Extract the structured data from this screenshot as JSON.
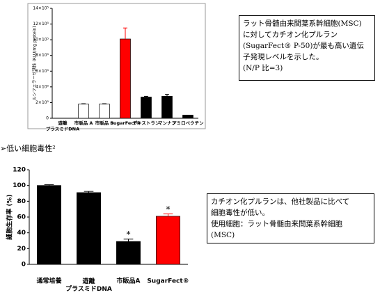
{
  "charts": [
    {
      "chart_data": {
        "type": "bar",
        "ylabel": "ルシフェラーゼ活性 (RLU/mg protein)",
        "categories": [
          "遊離\nプラスミドDNA",
          "市販品 A",
          "市販品 B",
          "SugarFect®",
          "デキストラン",
          "マンナン",
          "アミロペクチン"
        ],
        "values": [
          0,
          180000,
          180000,
          1010000,
          270000,
          280000,
          40000
        ],
        "errors": [
          0,
          5000,
          5000,
          140000,
          10000,
          25000,
          0
        ],
        "colors": [
          "#ffffff",
          "#ffffff",
          "#ffffff",
          "#ff0000",
          "#000000",
          "#000000",
          "#000000"
        ],
        "label_colors": [
          "#000000",
          "#000000",
          "#000000",
          "#ff0000",
          "#000000",
          "#000000",
          "#000000"
        ],
        "ylim": [
          0,
          1400000
        ],
        "yticks": [
          0,
          {
            "value": 200000,
            "label": "2×10⁵"
          },
          {
            "value": 400000,
            "label": "4×10⁵"
          },
          {
            "value": 600000,
            "label": "6×10⁵"
          },
          {
            "value": 800000,
            "label": "8×10⁵"
          },
          {
            "value": 1000000,
            "label": "10×10⁵"
          },
          {
            "value": 1200000,
            "label": "12×10⁵"
          },
          {
            "value": 1400000,
            "label": "14×10⁵"
          }
        ]
      }
    },
    {
      "chart_data": {
        "type": "bar",
        "ylabel": "細胞生存率 (%)",
        "categories": [
          "通常培養",
          "遊離\nプラスミドDNA",
          "市販品A",
          "SugarFect®"
        ],
        "values": [
          100,
          91,
          29,
          61
        ],
        "errors": [
          1,
          1.5,
          3,
          3
        ],
        "markers": [
          null,
          null,
          "*",
          "*"
        ],
        "colors": [
          "#000000",
          "#000000",
          "#000000",
          "#ff0000"
        ],
        "label_colors": [
          "#000000",
          "#000000",
          "#000000",
          "#ff0000"
        ],
        "ylim": [
          0,
          120
        ],
        "yticks": [
          0,
          20,
          40,
          60,
          80,
          100,
          120
        ]
      }
    }
  ],
  "box1": [
    "ラット骨髄由来間葉系幹細胞(MSC)",
    "に対してカチオン化プルラン",
    "(SugarFect® P-50)が最も高い遺伝",
    "子発現レベルを示した。",
    "(N/P 比=3)"
  ],
  "heading": "➢低い細胞毒性²",
  "box2": [
    "カチオン化プルランは、他社製品に比べて",
    "細胞毒性が低い。",
    "使用細胞：ラット骨髄由来間葉系幹細胞",
    "(MSC)"
  ]
}
